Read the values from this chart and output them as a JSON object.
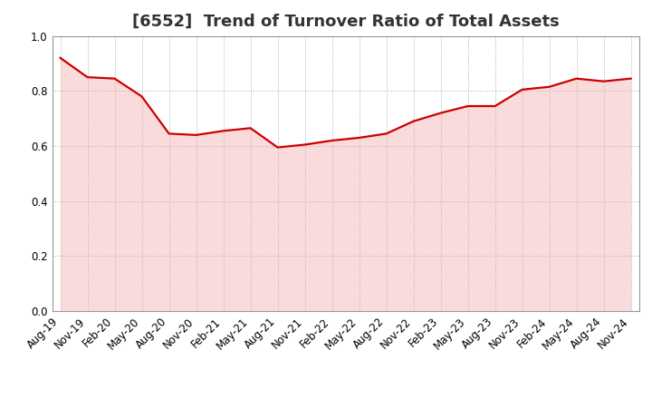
{
  "title": "[6552]  Trend of Turnover Ratio of Total Assets",
  "x_labels": [
    "Aug-19",
    "Nov-19",
    "Feb-20",
    "May-20",
    "Aug-20",
    "Nov-20",
    "Feb-21",
    "May-21",
    "Aug-21",
    "Nov-21",
    "Feb-22",
    "May-22",
    "Aug-22",
    "Nov-22",
    "Feb-23",
    "May-23",
    "Aug-23",
    "Nov-23",
    "Feb-24",
    "May-24",
    "Aug-24",
    "Nov-24"
  ],
  "y_values": [
    0.92,
    0.85,
    0.845,
    0.78,
    0.645,
    0.64,
    0.655,
    0.665,
    0.595,
    0.605,
    0.62,
    0.63,
    0.645,
    0.69,
    0.72,
    0.745,
    0.745,
    0.805,
    0.815,
    0.845,
    0.835,
    0.845
  ],
  "line_color": "#cc0000",
  "fill_color": "#f5b0b0",
  "fill_alpha": 0.45,
  "ylim": [
    0.0,
    1.0
  ],
  "yticks": [
    0.0,
    0.2,
    0.4,
    0.6,
    0.8,
    1.0
  ],
  "background_color": "#ffffff",
  "grid_color": "#aaaaaa",
  "title_fontsize": 13,
  "tick_fontsize": 8.5,
  "title_color": "#333333"
}
